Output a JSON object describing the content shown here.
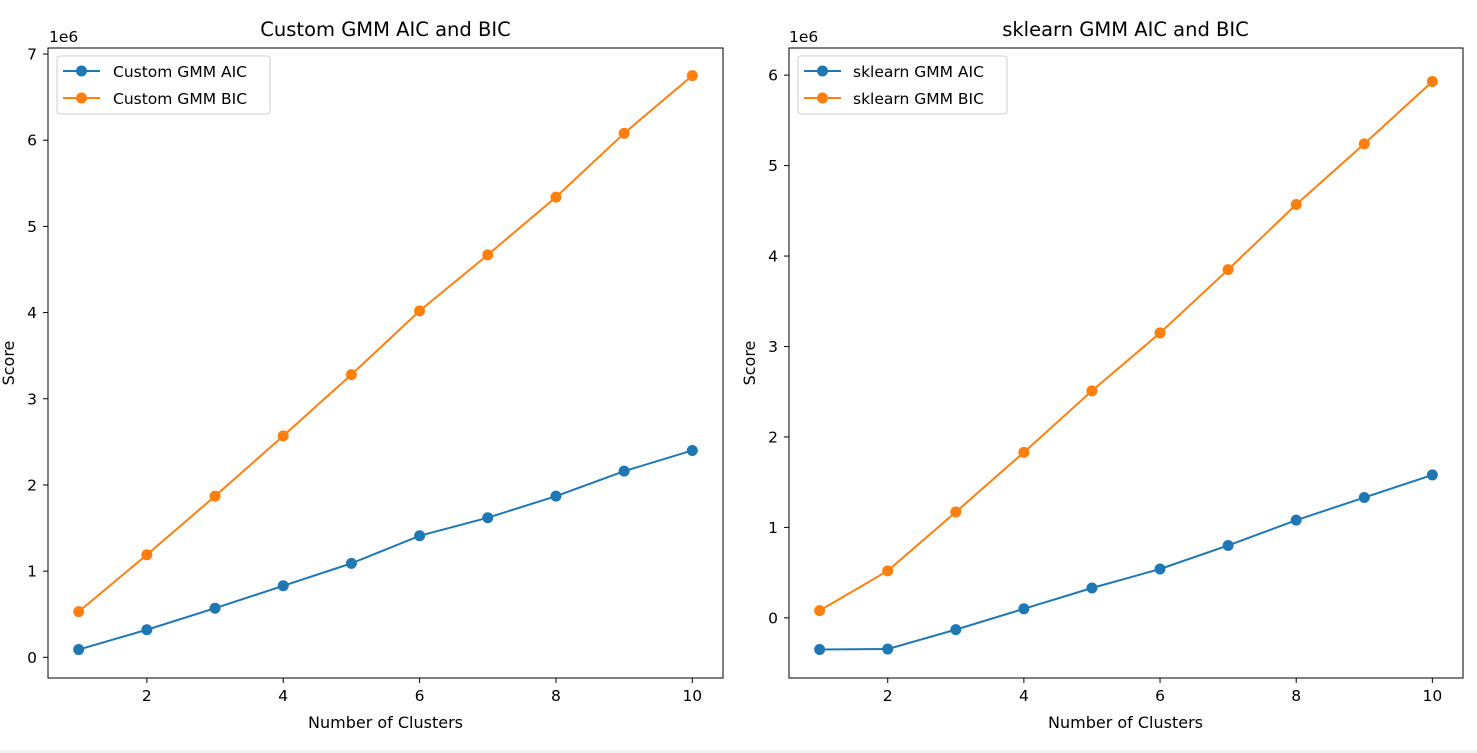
{
  "chart_data": [
    {
      "type": "line",
      "title": "Custom GMM AIC and BIC",
      "xlabel": "Number of Clusters",
      "ylabel": "Score",
      "offset_label": "1e6",
      "x": [
        1,
        2,
        3,
        4,
        5,
        6,
        7,
        8,
        9,
        10
      ],
      "xticks": [
        2,
        4,
        6,
        8,
        10
      ],
      "yticks": [
        0,
        1,
        2,
        3,
        4,
        5,
        6,
        7
      ],
      "xlim": [
        0.55,
        10.45
      ],
      "ylim": [
        -0.24,
        7.07
      ],
      "scale": 1000000,
      "legend": "top-left",
      "grid": false,
      "series": [
        {
          "name": "Custom GMM AIC",
          "color": "#1f77b4",
          "values": [
            0.09,
            0.32,
            0.57,
            0.83,
            1.09,
            1.41,
            1.62,
            1.87,
            2.16,
            2.4
          ]
        },
        {
          "name": "Custom GMM BIC",
          "color": "#ff7f0e",
          "values": [
            0.53,
            1.19,
            1.87,
            2.57,
            3.28,
            4.02,
            4.67,
            5.34,
            6.08,
            6.75
          ]
        }
      ]
    },
    {
      "type": "line",
      "title": "sklearn GMM AIC and BIC",
      "xlabel": "Number of Clusters",
      "ylabel": "Score",
      "offset_label": "1e6",
      "x": [
        1,
        2,
        3,
        4,
        5,
        6,
        7,
        8,
        9,
        10
      ],
      "xticks": [
        2,
        4,
        6,
        8,
        10
      ],
      "yticks": [
        0,
        1,
        2,
        3,
        4,
        5,
        6
      ],
      "xlim": [
        0.55,
        10.45
      ],
      "ylim": [
        -0.665,
        6.3
      ],
      "scale": 1000000,
      "legend": "top-left",
      "grid": false,
      "series": [
        {
          "name": "sklearn GMM AIC",
          "color": "#1f77b4",
          "values": [
            -0.35,
            -0.345,
            -0.13,
            0.1,
            0.33,
            0.54,
            0.8,
            1.08,
            1.33,
            1.58
          ]
        },
        {
          "name": "sklearn GMM BIC",
          "color": "#ff7f0e",
          "values": [
            0.08,
            0.52,
            1.17,
            1.83,
            2.51,
            3.15,
            3.85,
            4.57,
            5.24,
            5.93
          ]
        }
      ]
    }
  ]
}
